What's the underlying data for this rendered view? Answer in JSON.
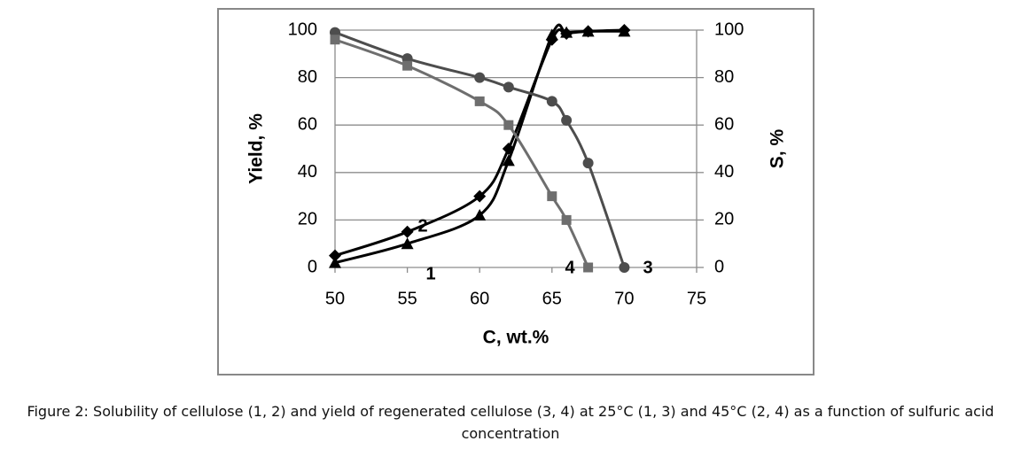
{
  "chart_data": {
    "type": "line",
    "caption": "Figure 2: Solubility of cellulose (1, 2) and yield of regenerated cellulose (3, 4) at 25°C (1, 3) and 45°C (2, 4) as a function of sulfuric acid concentration",
    "x_label": "C, wt.%",
    "y_label": "Yield, %",
    "y2_label": "S, %",
    "x": [
      50,
      55,
      60,
      62,
      65,
      66,
      67.5,
      70
    ],
    "series": [
      {
        "name": "1",
        "color": "#000000",
        "marker": "triangle",
        "axis": "y2",
        "values": [
          2,
          10,
          22,
          45,
          98,
          99,
          99.5,
          99.5
        ]
      },
      {
        "name": "2",
        "color": "#000000",
        "marker": "diamond",
        "axis": "y2",
        "values": [
          5,
          15,
          30,
          50,
          96,
          98.5,
          99.5,
          100
        ]
      },
      {
        "name": "3",
        "color": "#4d4d4d",
        "marker": "circle",
        "values": [
          99,
          88,
          80,
          76,
          70,
          62,
          44,
          0
        ]
      },
      {
        "name": "4",
        "color": "#6e6e6e",
        "marker": "square",
        "values": [
          96,
          85,
          70,
          60,
          30,
          20,
          0,
          null
        ]
      }
    ],
    "xlim": [
      50,
      75
    ],
    "xticks": [
      50,
      55,
      60,
      65,
      70,
      75
    ],
    "ylim": [
      0,
      100
    ],
    "yticks": [
      0,
      20,
      40,
      60,
      80,
      100
    ],
    "y2lim": [
      0,
      100
    ],
    "y2ticks": [
      0,
      20,
      40,
      60,
      80,
      100
    ],
    "grid": true
  }
}
